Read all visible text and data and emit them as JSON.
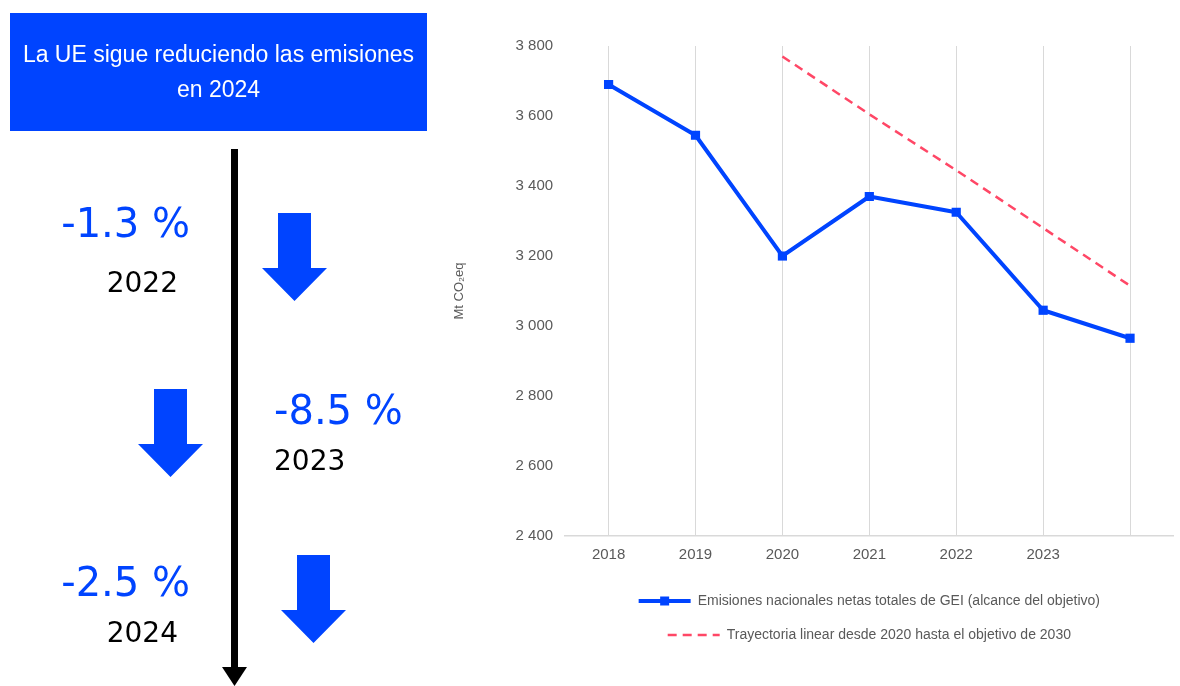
{
  "chart_data": [
    {
      "type": "other",
      "title": "La UE sigue reduciendo las emisiones en 2024",
      "annotations": [
        "-1.3 %",
        "2022",
        "-8.5 %",
        "2023",
        "-2.5 %",
        "2024"
      ]
    },
    {
      "type": "line",
      "ylabel": "Mt CO₂eq",
      "categories": [
        "2018",
        "2019",
        "2020",
        "2021",
        "2022",
        "2023",
        null
      ],
      "series": [
        {
          "name": "Emisiones nacionales netas totales de GEI (alcance del objetivo)",
          "color": "#0044ff",
          "values": [
            3690,
            3545,
            3200,
            3370,
            3325,
            3045,
            2965
          ],
          "marker": "square",
          "line_style": "solid"
        },
        {
          "name": "Trayectoria linear desde 2020 hasta el objetivo de 2030",
          "color": "#ff4766",
          "values": [
            null,
            null,
            3770,
            3605,
            3445,
            3280,
            3115
          ],
          "marker": "none",
          "line_style": "dashed"
        }
      ],
      "ylim": [
        2400,
        3800
      ],
      "yticks": [
        {
          "value": 2400,
          "label": "2 400"
        },
        {
          "value": 2600,
          "label": "2 600"
        },
        {
          "value": 2800,
          "label": "2 800"
        },
        {
          "value": 3000,
          "label": "3 000"
        },
        {
          "value": 3200,
          "label": "3 200"
        },
        {
          "value": 3400,
          "label": "3 400"
        },
        {
          "value": 3600,
          "label": "3 600"
        },
        {
          "value": 3800,
          "label": "3 800"
        }
      ],
      "grid": "x",
      "legend": "bottom"
    }
  ]
}
